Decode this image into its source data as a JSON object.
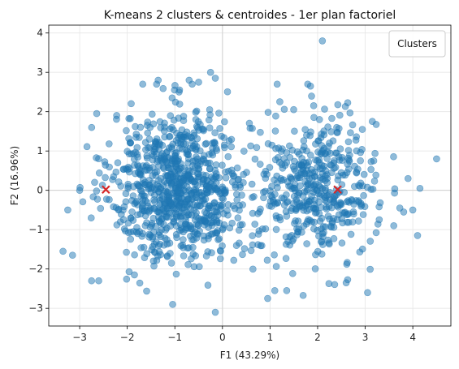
{
  "chart_data": {
    "type": "scatter",
    "title": "K-means 2 clusters & centroides - 1er plan factoriel",
    "xlabel": "F1 (43.29%)",
    "ylabel": "F2 (16.96%)",
    "xlim": [
      -3.65,
      4.8
    ],
    "ylim": [
      -3.45,
      4.2
    ],
    "xticks": [
      -3,
      -2,
      -1,
      0,
      1,
      2,
      3,
      4
    ],
    "yticks": [
      -3,
      -2,
      -1,
      0,
      1,
      2,
      3,
      4
    ],
    "grid": true,
    "reference_lines": {
      "x": 0,
      "y": 0
    },
    "legend": {
      "title": "Clusters",
      "placement": "top-right",
      "entries": []
    },
    "colors": {
      "points": "#1f77b4",
      "centroids": "#d62728",
      "grid": "#e6e6e6",
      "reference": "#d0d0d0"
    },
    "point_alpha": 0.5,
    "clusters": [
      {
        "center": [
          -0.9,
          0.1
        ],
        "spread": [
          0.72,
          0.95
        ],
        "count": 880
      },
      {
        "center": [
          2.0,
          0.05
        ],
        "spread": [
          0.62,
          0.9
        ],
        "count": 460
      }
    ],
    "outlier_points": [
      [
        4.5,
        0.8
      ],
      [
        4.1,
        -1.15
      ],
      [
        2.1,
        3.8
      ],
      [
        -0.25,
        3.0
      ],
      [
        -0.15,
        2.85
      ],
      [
        -3.35,
        -1.55
      ],
      [
        -3.15,
        -1.65
      ],
      [
        -0.15,
        -3.1
      ],
      [
        3.05,
        -2.6
      ],
      [
        2.6,
        -2.35
      ],
      [
        4.0,
        -0.5
      ],
      [
        4.15,
        0.05
      ],
      [
        -3.25,
        -0.5
      ],
      [
        -3.0,
        0.0
      ],
      [
        3.9,
        0.3
      ],
      [
        3.6,
        -0.9
      ],
      [
        -2.75,
        -2.3
      ],
      [
        -2.6,
        -2.3
      ],
      [
        -1.85,
        -2.15
      ],
      [
        1.35,
        -2.55
      ],
      [
        1.1,
        -2.55
      ],
      [
        0.95,
        -2.75
      ],
      [
        -1.35,
        2.8
      ],
      [
        -0.7,
        2.8
      ],
      [
        1.15,
        2.7
      ],
      [
        1.85,
        2.65
      ],
      [
        -0.5,
        2.75
      ]
    ],
    "centroids": [
      {
        "x": -2.45,
        "y": 0.02
      },
      {
        "x": 2.42,
        "y": 0.02
      }
    ]
  }
}
